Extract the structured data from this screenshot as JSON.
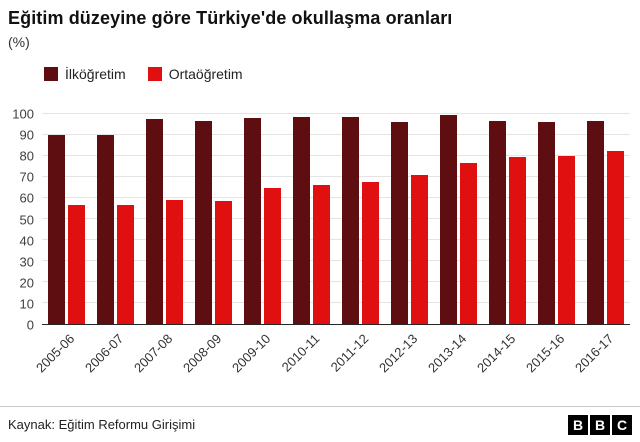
{
  "header": {
    "title": "Eğitim düzeyine göre Türkiye'de okullaşma oranları",
    "unit_label": "(%)"
  },
  "legend": [
    {
      "label": "İlköğretim",
      "color": "#5e0e10"
    },
    {
      "label": "Ortaöğretim",
      "color": "#e11010"
    }
  ],
  "chart_data": {
    "type": "bar",
    "title": "Eğitim düzeyine göre Türkiye'de okullaşma oranları",
    "ylabel": "(%)",
    "categories": [
      "2005-06",
      "2006-07",
      "2007-08",
      "2008-09",
      "2009-10",
      "2010-11",
      "2011-12",
      "2012-13",
      "2013-14",
      "2014-15",
      "2015-16",
      "2016-17"
    ],
    "series": [
      {
        "name": "İlköğretim",
        "color": "#5e0e10",
        "values": [
          90.0,
          90.1,
          97.4,
          96.5,
          98.2,
          98.4,
          98.7,
          96.2,
          99.3,
          96.9,
          96.0,
          96.5
        ]
      },
      {
        "name": "Ortaöğretim",
        "color": "#e11010",
        "values": [
          56.6,
          56.5,
          59.0,
          58.5,
          65.0,
          66.1,
          67.4,
          70.8,
          76.7,
          79.4,
          79.8,
          82.5
        ]
      }
    ],
    "ylim": [
      0,
      100
    ],
    "ytick_step": 10,
    "grid": true,
    "legend_position": "top-left"
  },
  "footer": {
    "source": "Kaynak: Eğitim Reformu Girişimi",
    "logo_letters": [
      "B",
      "B",
      "C"
    ]
  }
}
